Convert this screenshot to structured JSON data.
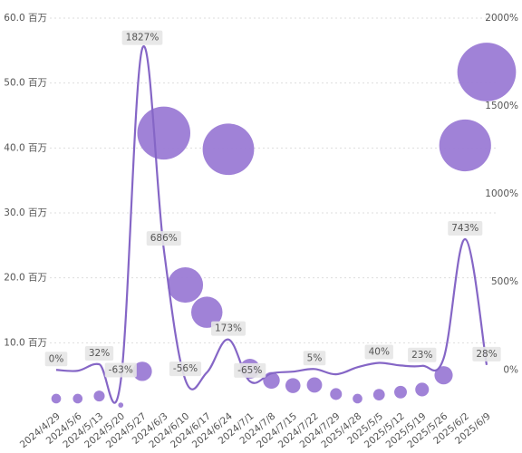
{
  "chart_data": {
    "type": "bubble-line",
    "categories": [
      "2024/4/29",
      "2024/5/6",
      "2024/5/13",
      "2024/5/20",
      "2024/5/27",
      "2024/6/3",
      "2024/6/10",
      "2024/6/17",
      "2024/6/24",
      "2024/7/1",
      "2024/7/8",
      "2024/7/15",
      "2024/7/22",
      "2024/7/29",
      "2025/4/28",
      "2025/5/5",
      "2025/5/12",
      "2025/5/19",
      "2025/5/26",
      "2025/6/2",
      "2025/6/9"
    ],
    "series": [
      {
        "type": "bubble",
        "color": "#9b7bd5",
        "values": [
          1.4,
          1.4,
          1.8,
          0.4,
          5.6,
          42.3,
          18.9,
          14.7,
          39.8,
          6.0,
          4.2,
          3.4,
          3.5,
          2.1,
          1.4,
          2.0,
          2.4,
          2.8,
          5.0,
          40.4,
          51.7
        ]
      },
      {
        "type": "line",
        "axis": "y2",
        "color": "#8566c6",
        "values": [
          0,
          -5,
          32,
          -63,
          1827,
          686,
          -56,
          -15,
          173,
          -65,
          -20,
          -10,
          5,
          -25,
          15,
          40,
          25,
          23,
          65,
          743,
          28
        ],
        "value_labels": [
          "0%",
          null,
          "32%",
          "-63%",
          "1827%",
          "686%",
          "-56%",
          null,
          "173%",
          "-65%",
          null,
          null,
          "5%",
          null,
          null,
          "40%",
          null,
          "23%",
          null,
          "743%",
          "28%"
        ]
      }
    ],
    "ylim": [
      0,
      60
    ],
    "yticks": [
      {
        "value": 10,
        "label": "10.0 百万"
      },
      {
        "value": 20,
        "label": "20.0 百万"
      },
      {
        "value": 30,
        "label": "30.0 百万"
      },
      {
        "value": 40,
        "label": "40.0 百万"
      },
      {
        "value": 50,
        "label": "50.0 百万"
      },
      {
        "value": 60,
        "label": "60.0 百万"
      }
    ],
    "y2lim": [
      -215,
      2000
    ],
    "y2ticks": [
      {
        "value": 0,
        "label": "0%"
      },
      {
        "value": 500,
        "label": "500%"
      },
      {
        "value": 1000,
        "label": "1000%"
      },
      {
        "value": 1500,
        "label": "1500%"
      },
      {
        "value": 2000,
        "label": "2000%"
      }
    ],
    "grid": true
  }
}
